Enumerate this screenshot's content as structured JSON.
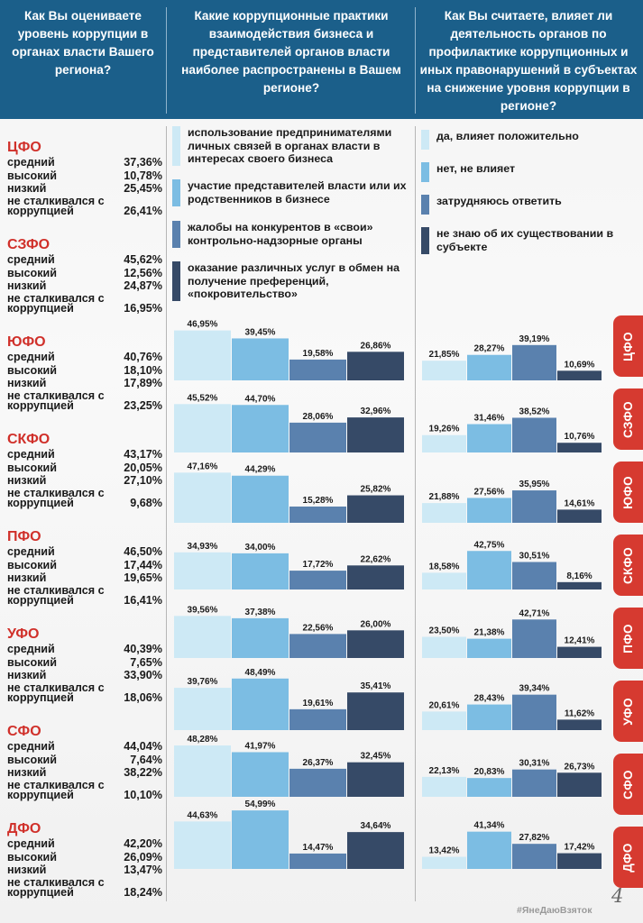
{
  "colors": {
    "header_bg": "#1b5f8a",
    "region_red": "#d0302a",
    "tab_red": "#d63a30",
    "series": [
      "#cde9f5",
      "#7cbde3",
      "#5a81ae",
      "#364a67"
    ]
  },
  "header": {
    "col1": "Как Вы оцениваете уровень коррупции в органах власти Вашего региона?",
    "col2": "Какие коррупционные практики взаимодействия бизнеса и представителей органов власти наиболее распространены в Вашем регионе?",
    "col3": "Как Вы считаете, влияет ли деятельность органов  по профилактике коррупционных и иных правонарушений в субъектах на снижение уровня  коррупции в регионе?"
  },
  "level_labels": [
    "средний",
    "высокий",
    "низкий",
    "не сталкивался с коррупцией"
  ],
  "regions": [
    {
      "name": "ЦФО",
      "values": [
        "37,36%",
        "10,78%",
        "25,45%",
        "26,41%"
      ]
    },
    {
      "name": "СЗФО",
      "values": [
        "45,62%",
        "12,56%",
        "24,87%",
        "16,95%"
      ]
    },
    {
      "name": "ЮФО",
      "values": [
        "40,76%",
        "18,10%",
        "17,89%",
        "23,25%"
      ]
    },
    {
      "name": "СКФО",
      "values": [
        "43,17%",
        "20,05%",
        "27,10%",
        "9,68%"
      ]
    },
    {
      "name": "ПФО",
      "values": [
        "46,50%",
        "17,44%",
        "19,65%",
        "16,41%"
      ]
    },
    {
      "name": "УФО",
      "values": [
        "40,39%",
        "7,65%",
        "33,90%",
        "18,06%"
      ]
    },
    {
      "name": "СФО",
      "values": [
        "44,04%",
        "7,64%",
        "38,22%",
        "10,10%"
      ]
    },
    {
      "name": "ДФО",
      "values": [
        "42,20%",
        "26,09%",
        "13,47%",
        "18,24%"
      ]
    }
  ],
  "legend_practices": [
    "использование предпринимателями личных связей в органах власти в интересах своего бизнеса",
    "участие представителей власти или их родственников в бизнесе",
    "жалобы на конкурентов в «свои» контрольно-надзорные органы",
    "оказание различных услуг в обмен на получение преференций, «покровительство»"
  ],
  "legend_influence": [
    "да, влияет положительно",
    "нет, не влияет",
    "затрудняюсь ответить",
    "не знаю об их существовании в субъекте"
  ],
  "chart_data": [
    {
      "type": "bar",
      "categories": [
        "ЦФО",
        "СЗФО",
        "ЮФО",
        "СКФО",
        "ПФО",
        "УФО",
        "СФО",
        "ДФО"
      ],
      "series": [
        {
          "name": "использование предпринимателями личных связей в органах власти в интересах своего бизнеса",
          "values": [
            46.95,
            45.52,
            47.16,
            34.93,
            39.56,
            39.76,
            48.28,
            44.63
          ],
          "labels": [
            "46,95%",
            "45,52%",
            "47,16%",
            "34,93%",
            "39,56%",
            "39,76%",
            "48,28%",
            "44,63%"
          ]
        },
        {
          "name": "участие представителей власти или их родственников в бизнесе",
          "values": [
            39.45,
            44.7,
            44.29,
            34.0,
            37.38,
            48.49,
            41.97,
            54.99
          ],
          "labels": [
            "39,45%",
            "44,70%",
            "44,29%",
            "34,00%",
            "37,38%",
            "48,49%",
            "41,97%",
            "54,99%"
          ]
        },
        {
          "name": "жалобы на конкурентов в «свои» контрольно-надзорные органы",
          "values": [
            19.58,
            28.06,
            15.28,
            17.72,
            22.56,
            19.61,
            26.37,
            14.47
          ],
          "labels": [
            "19,58%",
            "28,06%",
            "15,28%",
            "17,72%",
            "22,56%",
            "19,61%",
            "26,37%",
            "14,47%"
          ]
        },
        {
          "name": "оказание различных услуг в обмен на получение преференций, «покровительство»",
          "values": [
            26.86,
            32.96,
            25.82,
            22.62,
            26.0,
            35.41,
            32.45,
            34.64
          ],
          "labels": [
            "26,86%",
            "32,96%",
            "25,82%",
            "22,62%",
            "26,00%",
            "35,41%",
            "32,45%",
            "34,64%"
          ]
        }
      ]
    },
    {
      "type": "bar",
      "categories": [
        "ЦФО",
        "СЗФО",
        "ЮФО",
        "СКФО",
        "ПФО",
        "УФО",
        "СФО",
        "ДФО"
      ],
      "series": [
        {
          "name": "да, влияет положительно",
          "values": [
            21.85,
            19.26,
            21.88,
            18.58,
            23.5,
            20.61,
            22.13,
            13.42
          ],
          "labels": [
            "21,85%",
            "19,26%",
            "21,88%",
            "18,58%",
            "23,50%",
            "20,61%",
            "22,13%",
            "13,42%"
          ]
        },
        {
          "name": "нет, не влияет",
          "values": [
            28.27,
            31.46,
            27.56,
            42.75,
            21.38,
            28.43,
            20.83,
            41.34
          ],
          "labels": [
            "28,27%",
            "31,46%",
            "27,56%",
            "42,75%",
            "21,38%",
            "28,43%",
            "20,83%",
            "41,34%"
          ]
        },
        {
          "name": "затрудняюсь ответить",
          "values": [
            39.19,
            38.52,
            35.95,
            30.51,
            42.71,
            39.34,
            30.31,
            27.82
          ],
          "labels": [
            "39,19%",
            "38,52%",
            "35,95%",
            "30,51%",
            "42,71%",
            "39,34%",
            "30,31%",
            "27,82%"
          ]
        },
        {
          "name": "не знаю об их существовании в субъекте",
          "values": [
            10.69,
            10.76,
            14.61,
            8.16,
            12.41,
            11.62,
            26.73,
            17.42
          ],
          "labels": [
            "10,69%",
            "10,76%",
            "14,61%",
            "8,16%",
            "12,41%",
            "11,62%",
            "26,73%",
            "17,42%"
          ]
        }
      ]
    }
  ],
  "footer": {
    "hashtag": "#ЯнеДаюВзяток",
    "page_number": "4"
  }
}
